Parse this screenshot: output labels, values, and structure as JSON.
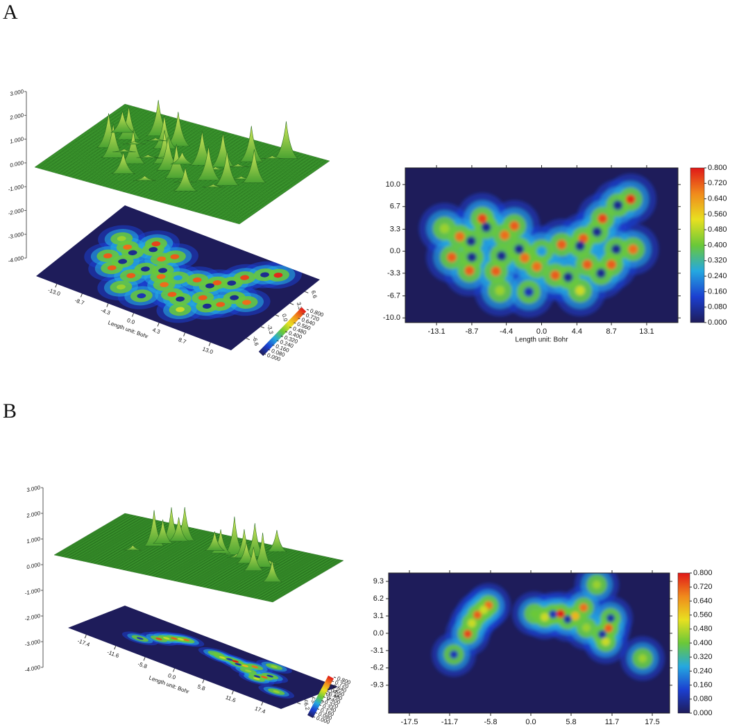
{
  "chart_data": [
    {
      "type": "surface",
      "panel": "A",
      "xlabel": "Length unit: Bohr",
      "xlim": [
        -16.5,
        16.5
      ],
      "xticks": [
        {
          "value": -13,
          "label": "-13.0"
        },
        -8.7,
        -4.3,
        {
          "value": 0,
          "label": "0.0"
        },
        4.3,
        8.7,
        {
          "value": 13,
          "label": "13.0"
        }
      ],
      "ylim": [
        -10,
        10
      ],
      "yticks": [
        -6.6,
        -3.3,
        {
          "value": 0,
          "label": "0.0"
        },
        3.3,
        6.6
      ],
      "zlim": [
        -4,
        3
      ],
      "zticks": [
        {
          "value": 3,
          "label": "3.000"
        },
        {
          "value": 2,
          "label": "2.000"
        },
        {
          "value": 1,
          "label": "1.000"
        },
        {
          "value": 0,
          "label": "0.000"
        },
        {
          "value": -1,
          "label": "-1.000"
        },
        {
          "value": -2,
          "label": "-2.000"
        },
        {
          "value": -3,
          "label": "-3.000"
        },
        {
          "value": -4,
          "label": "-4.000"
        }
      ],
      "clim": [
        0,
        0.8
      ],
      "cticks": [
        {
          "value": 0,
          "label": "0.000"
        },
        {
          "value": 0.08,
          "label": "0.080"
        },
        {
          "value": 0.16,
          "label": "0.160"
        },
        {
          "value": 0.24,
          "label": "0.240"
        },
        {
          "value": 0.32,
          "label": "0.320"
        },
        {
          "value": 0.4,
          "label": "0.400"
        },
        {
          "value": 0.48,
          "label": "0.480"
        },
        {
          "value": 0.56,
          "label": "0.560"
        },
        {
          "value": 0.64,
          "label": "0.640"
        },
        {
          "value": 0.72,
          "label": "0.720"
        },
        {
          "value": 0.8,
          "label": "0.800"
        }
      ],
      "colormap": [
        "#1e1c5a",
        "#1b3fd0",
        "#25a8e0",
        "#6ac838",
        "#e8e020",
        "#f08a1c",
        "#e01818"
      ],
      "surface_color": "#3d9b2f"
    },
    {
      "type": "heatmap",
      "xlabel": "Length unit: Bohr",
      "xlim": [
        -17,
        17
      ],
      "xticks": [
        -13.1,
        -8.7,
        -4.4,
        {
          "value": 0,
          "label": "0.0"
        },
        4.4,
        8.7,
        13.1
      ],
      "ylim": [
        -10.7,
        12.5
      ],
      "yticks": [
        {
          "value": 10,
          "label": "10.0"
        },
        6.7,
        3.3,
        {
          "value": 0,
          "label": "0.0"
        },
        -3.3,
        -6.7,
        {
          "value": -10,
          "label": "-10.0"
        }
      ],
      "clim": [
        0,
        0.8
      ],
      "cticks": [
        {
          "value": 0.8,
          "label": "0.800"
        },
        {
          "value": 0.72,
          "label": "0.720"
        },
        {
          "value": 0.64,
          "label": "0.640"
        },
        {
          "value": 0.56,
          "label": "0.560"
        },
        {
          "value": 0.48,
          "label": "0.480"
        },
        {
          "value": 0.4,
          "label": "0.400"
        },
        {
          "value": 0.32,
          "label": "0.320"
        },
        {
          "value": 0.24,
          "label": "0.240"
        },
        {
          "value": 0.16,
          "label": "0.160"
        },
        {
          "value": 0.08,
          "label": "0.080"
        },
        {
          "value": 0,
          "label": "0.000"
        }
      ],
      "colormap": [
        "#1e1c5a",
        "#1b3fd0",
        "#25a8e0",
        "#6ac838",
        "#e8e020",
        "#f08a1c",
        "#e01818"
      ],
      "x": [
        -7.4,
        -3.4,
        -10.2,
        -4.6,
        -11.2,
        -9.0,
        -5.7,
        -2.1,
        -6.9,
        -8.8,
        -8.7,
        -5.0,
        -2.8,
        -0.6,
        1.7,
        0,
        2.5,
        5.2,
        7.6,
        11.1,
        9.5,
        4.8,
        6.9,
        9.3,
        5.7,
        8.7,
        11.4,
        7.4,
        3.3,
        -1.6,
        4.8,
        -5.2,
        -12.1
      ],
      "y": [
        4.9,
        3.8,
        2.2,
        2.4,
        -0.9,
        -2.9,
        -3.0,
        -1.0,
        3.6,
        1.5,
        -0.9,
        -0.7,
        0.3,
        -2.3,
        -3.6,
        0,
        1.0,
        1.9,
        4.9,
        7.8,
        6.9,
        0.8,
        2.9,
        0.3,
        -2.0,
        -2.0,
        0.3,
        -3.3,
        -3.9,
        -6.1,
        -5.9,
        -5.9,
        3.4
      ],
      "values": [
        0.75,
        0.72,
        0.7,
        0.7,
        0.72,
        0.72,
        0.72,
        0.7,
        0.06,
        0.06,
        0.06,
        0.06,
        0.06,
        0.7,
        0.72,
        0.25,
        0.72,
        0.72,
        0.75,
        0.78,
        0.06,
        0.06,
        0.06,
        0.06,
        0.72,
        0.72,
        0.7,
        0.06,
        0.06,
        0.1,
        0.5,
        0.45,
        0.45
      ]
    },
    {
      "type": "surface",
      "panel": "B",
      "xlabel": "Length unit: Bohr",
      "xlim": [
        -21,
        21
      ],
      "xticks": [
        -17.4,
        -11.6,
        -5.8,
        {
          "value": 0,
          "label": "0.0"
        },
        5.8,
        11.6,
        17.4
      ],
      "ylim": [
        -13,
        11
      ],
      "yticks": [
        -6.2,
        -3.1,
        {
          "value": 0,
          "label": "0.0"
        },
        3.1,
        6.2
      ],
      "zlim": [
        -4,
        3
      ],
      "zticks": [
        {
          "value": 3,
          "label": "3.000"
        },
        {
          "value": 2,
          "label": "2.000"
        },
        {
          "value": 1,
          "label": "1.000"
        },
        {
          "value": 0,
          "label": "0.000"
        },
        {
          "value": -1,
          "label": "-1.000"
        },
        {
          "value": -2,
          "label": "-2.000"
        },
        {
          "value": -3,
          "label": "-3.000"
        },
        {
          "value": -4,
          "label": "-4.000"
        }
      ],
      "clim": [
        0,
        0.8
      ],
      "cticks": [
        {
          "value": 0,
          "label": "0.000"
        },
        {
          "value": 0.08,
          "label": "0.080"
        },
        {
          "value": 0.16,
          "label": "0.160"
        },
        {
          "value": 0.24,
          "label": "0.240"
        },
        {
          "value": 0.32,
          "label": "0.320"
        },
        {
          "value": 0.4,
          "label": "0.400"
        },
        {
          "value": 0.48,
          "label": "0.480"
        },
        {
          "value": 0.56,
          "label": "0.560"
        },
        {
          "value": 0.64,
          "label": "0.640"
        },
        {
          "value": 0.72,
          "label": "0.720"
        },
        {
          "value": 0.8,
          "label": "0.800"
        }
      ],
      "colormap": [
        "#1e1c5a",
        "#1b3fd0",
        "#25a8e0",
        "#6ac838",
        "#e8e020",
        "#f08a1c",
        "#e01818"
      ],
      "surface_color": "#3d9b2f"
    },
    {
      "type": "heatmap",
      "xlabel": "Length unit: Bohr",
      "xlim": [
        -20.5,
        20
      ],
      "xticks": [
        -17.5,
        -11.7,
        -5.8,
        {
          "value": 0,
          "label": "0.0"
        },
        5.8,
        11.7,
        17.5
      ],
      "ylim": [
        -14.3,
        10.8
      ],
      "yticks": [
        9.3,
        6.2,
        3.1,
        {
          "value": 0,
          "label": "0.0"
        },
        -3.1,
        -6.2,
        -9.3
      ],
      "clim": [
        0,
        0.8
      ],
      "cticks": [
        {
          "value": 0.8,
          "label": "0.800"
        },
        {
          "value": 0.72,
          "label": "0.720"
        },
        {
          "value": 0.64,
          "label": "0.640"
        },
        {
          "value": 0.56,
          "label": "0.560"
        },
        {
          "value": 0.48,
          "label": "0.480"
        },
        {
          "value": 0.4,
          "label": "0.400"
        },
        {
          "value": 0.32,
          "label": "0.320"
        },
        {
          "value": 0.24,
          "label": "0.240"
        },
        {
          "value": 0.16,
          "label": "0.160"
        },
        {
          "value": 0.08,
          "label": "0.080"
        },
        {
          "value": 0,
          "label": "0.000"
        }
      ],
      "colormap": [
        "#1e1c5a",
        "#1b3fd0",
        "#25a8e0",
        "#6ac838",
        "#e8e020",
        "#f08a1c",
        "#e01818"
      ],
      "x": [
        -6.1,
        -7.7,
        -9.1,
        -11.1,
        -8.5,
        -6.8,
        3.2,
        4.3,
        5.3,
        6.4,
        7.6,
        9.5,
        11.5,
        11.2,
        10.3,
        16.1,
        2.0,
        0.5,
        8.0,
        10.8
      ],
      "y": [
        5.0,
        3.3,
        -0.1,
        -3.8,
        1.8,
        4.2,
        3.4,
        3.5,
        2.5,
        3.1,
        4.6,
        8.7,
        2.7,
        0.9,
        -0.2,
        -4.5,
        2.9,
        3.5,
        1.0,
        -1.5
      ],
      "values": [
        0.7,
        0.72,
        0.75,
        0.1,
        0.5,
        0.5,
        0.1,
        0.8,
        0.08,
        0.6,
        0.7,
        0.45,
        0.08,
        0.72,
        0.08,
        0.45,
        0.5,
        0.4,
        0.45,
        0.5
      ]
    }
  ]
}
